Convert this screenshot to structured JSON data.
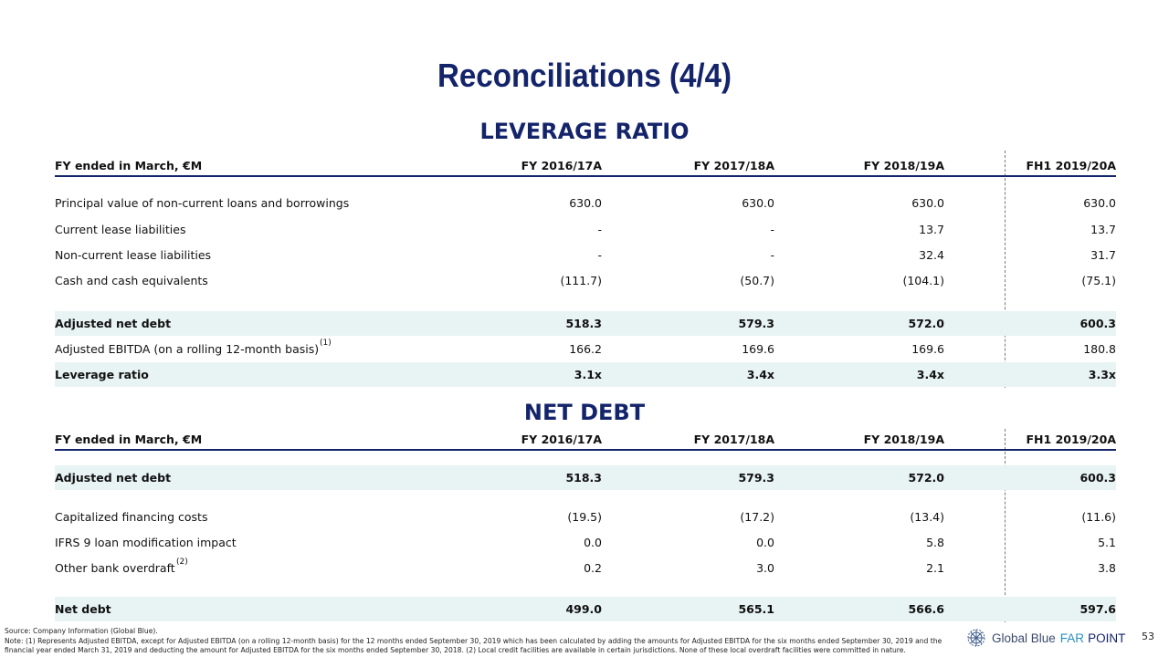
{
  "title": "Reconciliations (4/4)",
  "leverage": {
    "heading": "LEVERAGE RATIO",
    "columns": [
      "FY ended in March, €M",
      "FY 2016/17A",
      "FY 2017/18A",
      "FY 2018/19A",
      "FH1 2019/20A"
    ],
    "rows": [
      {
        "label": "Principal value of non-current loans and borrowings",
        "values": [
          "630.0",
          "630.0",
          "630.0",
          "630.0"
        ]
      },
      {
        "label": "Current lease liabilities",
        "values": [
          "-",
          "-",
          "13.7",
          "13.7"
        ]
      },
      {
        "label": "Non-current lease liabilities",
        "values": [
          "-",
          "-",
          "32.4",
          "31.7"
        ]
      },
      {
        "label": "Cash and cash equivalents",
        "values": [
          "(111.7)",
          "(50.7)",
          "(104.1)",
          "(75.1)"
        ]
      },
      {
        "label": "Adjusted net debt",
        "values": [
          "518.3",
          "579.3",
          "572.0",
          "600.3"
        ]
      },
      {
        "label": "Adjusted EBITDA (on a rolling 12-month basis)",
        "note": "(1)",
        "values": [
          "166.2",
          "169.6",
          "169.6",
          "180.8"
        ]
      },
      {
        "label": "Leverage ratio",
        "values": [
          "3.1x",
          "3.4x",
          "3.4x",
          "3.3x"
        ]
      }
    ]
  },
  "netdebt": {
    "heading": "NET DEBT",
    "columns": [
      "FY ended in March, €M",
      "FY 2016/17A",
      "FY 2017/18A",
      "FY 2018/19A",
      "FH1 2019/20A"
    ],
    "rows": [
      {
        "label": "Adjusted net debt",
        "values": [
          "518.3",
          "579.3",
          "572.0",
          "600.3"
        ]
      },
      {
        "label": "Capitalized financing costs",
        "values": [
          "(19.5)",
          "(17.2)",
          "(13.4)",
          "(11.6)"
        ]
      },
      {
        "label": "IFRS 9 loan modification impact",
        "values": [
          "0.0",
          "0.0",
          "5.8",
          "5.1"
        ]
      },
      {
        "label": "Other bank overdraft",
        "note": "(2)",
        "values": [
          "0.2",
          "3.0",
          "2.1",
          "3.8"
        ]
      },
      {
        "label": "Net debt",
        "values": [
          "499.0",
          "565.1",
          "566.6",
          "597.6"
        ]
      }
    ]
  },
  "footer": {
    "source": "Source: Company Information (Global Blue).",
    "note": "Note: (1) Represents Adjusted EBITDA, except for Adjusted EBITDA (on a rolling 12-month basis) for the 12 months ended September 30, 2019 which has been calculated by adding the amounts for Adjusted EBITDA for the six months ended September 30, 2019 and the financial year ended March 31, 2019 and deducting the amount for Adjusted EBITDA for the six months ended September 30, 2018. (2) Local credit facilities are available in certain jurisdictions. None of these local overdraft facilities were committed in nature.",
    "logo": {
      "brand": "Global Blue",
      "far": "FAR",
      "point": "POINT"
    },
    "page": "53"
  },
  "colors": {
    "navy": "#14246b",
    "shade": "#e8f3f3",
    "accent": "#2a8fbf"
  }
}
